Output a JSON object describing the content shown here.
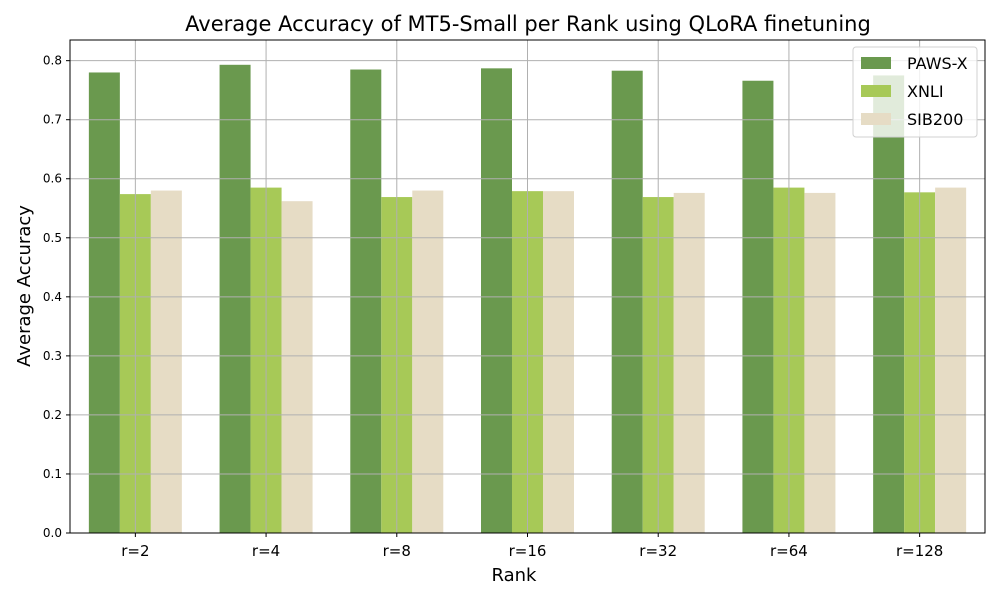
{
  "chart_data": {
    "type": "bar",
    "title": "Average Accuracy of MT5-Small per Rank using QLoRA finetuning",
    "xlabel": "Rank",
    "ylabel": "Average Accuracy",
    "categories": [
      "r=2",
      "r=4",
      "r=8",
      "r=16",
      "r=32",
      "r=64",
      "r=128"
    ],
    "series": [
      {
        "name": "PAWS-X",
        "color": "#6a994e",
        "values": [
          0.78,
          0.793,
          0.785,
          0.787,
          0.783,
          0.766,
          0.775
        ]
      },
      {
        "name": "XNLI",
        "color": "#a7c957",
        "values": [
          0.574,
          0.585,
          0.569,
          0.579,
          0.569,
          0.585,
          0.577
        ]
      },
      {
        "name": "SIB200",
        "color": "#e6dcc5",
        "values": [
          0.58,
          0.562,
          0.58,
          0.579,
          0.576,
          0.576,
          0.585
        ]
      }
    ],
    "ylim": [
      0,
      0.835
    ],
    "yticks": [
      "0.0",
      "0.1",
      "0.2",
      "0.3",
      "0.4",
      "0.5",
      "0.6",
      "0.7",
      "0.8"
    ],
    "grid": true,
    "legend_position": "top-right"
  }
}
